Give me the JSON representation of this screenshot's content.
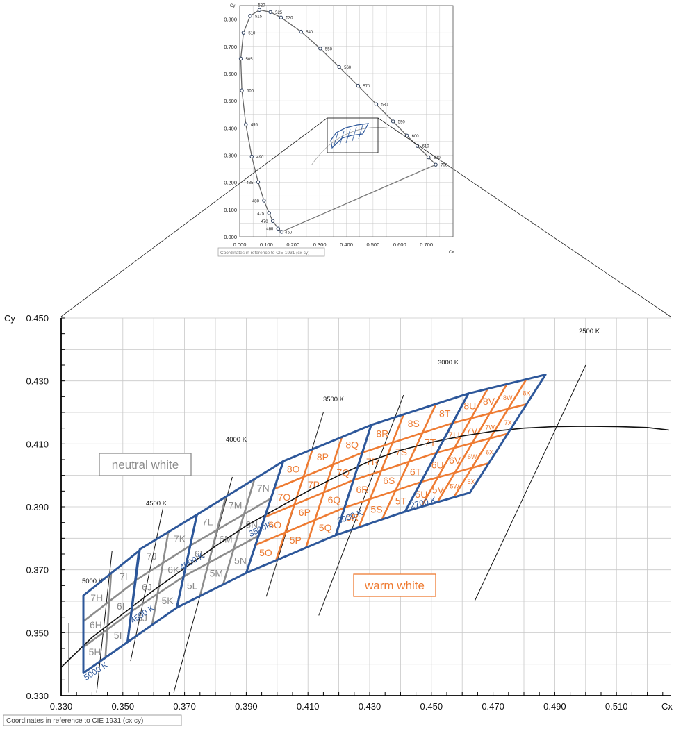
{
  "chart_data": [
    {
      "type": "scatter",
      "name_hint": "inset-cie-diagram",
      "xlabel": "Cx",
      "ylabel": "Cy",
      "xlim": [
        0.0,
        0.8
      ],
      "ylim": [
        0.0,
        0.85
      ],
      "x_ticks": [
        "0.000",
        "0.100",
        "0.200",
        "0.300",
        "0.400",
        "0.500",
        "0.600",
        "0.700"
      ],
      "y_ticks": [
        "0.000",
        "0.100",
        "0.200",
        "0.300",
        "0.400",
        "0.500",
        "0.600",
        "0.700",
        "0.800"
      ],
      "grid": true,
      "footnote": "Coordinates in reference to CIE 1931 (cx cy)",
      "spectral_locus": [
        {
          "nm": "450",
          "x": 0.157,
          "y": 0.018
        },
        {
          "nm": "460",
          "x": 0.144,
          "y": 0.03
        },
        {
          "nm": "470",
          "x": 0.124,
          "y": 0.058
        },
        {
          "nm": "475",
          "x": 0.11,
          "y": 0.087
        },
        {
          "nm": "480",
          "x": 0.091,
          "y": 0.133
        },
        {
          "nm": "485",
          "x": 0.069,
          "y": 0.201
        },
        {
          "nm": "490",
          "x": 0.045,
          "y": 0.295
        },
        {
          "nm": "495",
          "x": 0.023,
          "y": 0.413
        },
        {
          "nm": "500",
          "x": 0.008,
          "y": 0.538
        },
        {
          "nm": "505",
          "x": 0.004,
          "y": 0.655
        },
        {
          "nm": "510",
          "x": 0.014,
          "y": 0.75
        },
        {
          "nm": "515",
          "x": 0.039,
          "y": 0.812
        },
        {
          "nm": "520",
          "x": 0.074,
          "y": 0.834
        },
        {
          "nm": "525",
          "x": 0.115,
          "y": 0.826
        },
        {
          "nm": "530",
          "x": 0.155,
          "y": 0.806
        },
        {
          "nm": "540",
          "x": 0.23,
          "y": 0.754
        },
        {
          "nm": "550",
          "x": 0.302,
          "y": 0.692
        },
        {
          "nm": "560",
          "x": 0.373,
          "y": 0.624
        },
        {
          "nm": "570",
          "x": 0.444,
          "y": 0.555
        },
        {
          "nm": "580",
          "x": 0.512,
          "y": 0.487
        },
        {
          "nm": "590",
          "x": 0.575,
          "y": 0.424
        },
        {
          "nm": "600",
          "x": 0.627,
          "y": 0.372
        },
        {
          "nm": "610",
          "x": 0.666,
          "y": 0.334
        },
        {
          "nm": "630",
          "x": 0.708,
          "y": 0.292
        },
        {
          "nm": "700",
          "x": 0.735,
          "y": 0.265
        }
      ]
    },
    {
      "type": "scatter",
      "name_hint": "main-ansi-bin-chart",
      "xlabel": "Cx",
      "ylabel": "Cy",
      "xlim": [
        0.33,
        0.527
      ],
      "ylim": [
        0.33,
        0.45
      ],
      "x_ticks": [
        "0.330",
        "0.350",
        "0.370",
        "0.390",
        "0.410",
        "0.430",
        "0.450",
        "0.470",
        "0.490",
        "0.510"
      ],
      "y_ticks": [
        "0.330",
        "0.350",
        "0.370",
        "0.390",
        "0.410",
        "0.430",
        "0.450"
      ],
      "grid": true,
      "footnote": "Coordinates in reference to CIE 1931 (cx cy)",
      "region_labels": {
        "neutral": "neutral white",
        "warm": "warm white"
      },
      "cct_lines": [
        {
          "label": "5000 K",
          "x": [
            0.3465,
            0.3415
          ],
          "y": [
            0.376,
            0.331
          ]
        },
        {
          "label": "4500 K",
          "x": [
            0.363,
            0.3525
          ],
          "y": [
            0.3895,
            0.341
          ]
        },
        {
          "label": "4000 K",
          "x": [
            0.3855,
            0.3665
          ],
          "y": [
            0.3995,
            0.331
          ]
        },
        {
          "label": "3500 K",
          "x": [
            0.415,
            0.3965
          ],
          "y": [
            0.42,
            0.3615
          ]
        },
        {
          "label": "3000 K",
          "x": [
            0.441,
            0.4135
          ],
          "y": [
            0.4255,
            0.3555
          ]
        },
        {
          "label": "2500 K",
          "x": [
            0.5,
            0.464
          ],
          "y": [
            0.435,
            0.36
          ]
        },
        {
          "label": "",
          "x": [
            0.3325,
            0.3325
          ],
          "y": [
            0.353,
            0.331
          ]
        }
      ],
      "planckian_locus": {
        "x": [
          0.33,
          0.34,
          0.35,
          0.36,
          0.37,
          0.38,
          0.39,
          0.4,
          0.41,
          0.42,
          0.43,
          0.44,
          0.45,
          0.46,
          0.47,
          0.48,
          0.49,
          0.5,
          0.51,
          0.52,
          0.527
        ],
        "y": [
          0.339,
          0.3485,
          0.356,
          0.3635,
          0.3705,
          0.3775,
          0.384,
          0.3895,
          0.395,
          0.4,
          0.4045,
          0.408,
          0.4105,
          0.4125,
          0.414,
          0.415,
          0.4155,
          0.4156,
          0.4155,
          0.4152,
          0.4144
        ]
      },
      "bin_groups": [
        {
          "name": "neutral",
          "color": "#8c8c8c",
          "outline": "#2d579a",
          "boundaries_cx_at_bottom": [
            0.337,
            0.344,
            0.3515,
            0.3595,
            0.3675,
            0.376,
            0.3825
          ],
          "quads": [
            {
              "tl": [
                0.3372,
                0.3618
              ],
              "tr": [
                0.3552,
                0.376
              ],
              "br": [
                0.3515,
                0.347
              ],
              "bl": [
                0.3372,
                0.3372
              ]
            },
            {
              "tl": [
                0.3555,
                0.3765
              ],
              "tr": [
                0.374,
                0.3875
              ],
              "br": [
                0.3675,
                0.358
              ],
              "bl": [
                0.3515,
                0.347
              ]
            },
            {
              "tl": [
                0.374,
                0.3875
              ],
              "tr": [
                0.402,
                0.4045
              ],
              "br": [
                0.39,
                0.369
              ],
              "bl": [
                0.3675,
                0.358
              ]
            }
          ],
          "labels": [
            "7H",
            "6H",
            "5H",
            "7I",
            "6I",
            "5I",
            "7J",
            "6J",
            "5J",
            "7K",
            "6K",
            "5K",
            "7L",
            "6L",
            "5L",
            "7M",
            "6M",
            "5M",
            "7N",
            "6N",
            "5N"
          ]
        },
        {
          "name": "warm",
          "color": "#ee7b32",
          "outline": "#2d579a",
          "quads": [
            {
              "tl": [
                0.402,
                0.4045
              ],
              "tr": [
                0.4305,
                0.416
              ],
              "br": [
                0.419,
                0.381
              ],
              "bl": [
                0.39,
                0.369
              ]
            },
            {
              "tl": [
                0.4305,
                0.416
              ],
              "tr": [
                0.462,
                0.426
              ],
              "br": [
                0.4415,
                0.3885
              ],
              "bl": [
                0.419,
                0.381
              ]
            },
            {
              "tl": [
                0.462,
                0.426
              ],
              "tr": [
                0.487,
                0.432
              ],
              "br": [
                0.4625,
                0.3945
              ],
              "bl": [
                0.4415,
                0.3885
              ]
            }
          ],
          "labels": [
            "8O",
            "7O",
            "6O",
            "5O",
            "8P",
            "7P",
            "6P",
            "5P",
            "8Q",
            "7Q",
            "6Q",
            "5Q",
            "8R",
            "7R",
            "6R",
            "5R",
            "8S",
            "7S",
            "6S",
            "5S",
            "8T",
            "7T",
            "6T",
            "5T",
            "8U",
            "7U",
            "6U",
            "5U",
            "8V",
            "7V",
            "6V",
            "5V",
            "8W",
            "7W",
            "6W",
            "5W",
            "8X",
            "7X",
            "6X",
            "5X"
          ]
        }
      ],
      "boundary_cct_labels": [
        "5000 K",
        "4500 K",
        "4000 K",
        "3500K",
        "3000 K",
        "2700 K"
      ]
    }
  ],
  "colors": {
    "blue_outline": "#2d579a",
    "gray_grid": "#c8c8c8",
    "neutral_gray": "#8c8c8c",
    "warm_orange": "#ee7b32",
    "axis": "#000000"
  }
}
